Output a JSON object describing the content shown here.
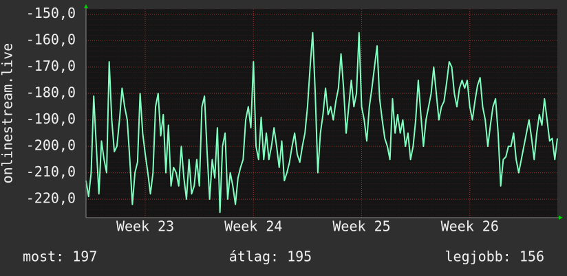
{
  "chart_data": {
    "type": "line",
    "ylabel": "onlinestream.live",
    "color": "#80ffc0",
    "grid": true,
    "ylim": [
      -227,
      -148
    ],
    "yticks": [
      {
        "value": -150,
        "label": "-150,0"
      },
      {
        "value": -160,
        "label": "-160,0"
      },
      {
        "value": -170,
        "label": "-170,0"
      },
      {
        "value": -180,
        "label": "-180,0"
      },
      {
        "value": -190,
        "label": "-190,0"
      },
      {
        "value": -200,
        "label": "-200,0"
      },
      {
        "value": -210,
        "label": "-210,0"
      },
      {
        "value": -220,
        "label": "-220,0"
      }
    ],
    "categories": [
      null,
      null,
      null,
      null,
      null,
      null,
      null,
      null,
      null,
      null,
      null,
      null,
      null,
      null,
      null,
      null,
      null,
      null,
      null,
      null,
      null,
      null,
      null,
      "Week 23",
      null,
      null,
      null,
      null,
      null,
      null,
      null,
      null,
      null,
      null,
      null,
      null,
      null,
      null,
      null,
      null,
      null,
      null,
      null,
      null,
      null,
      null,
      null,
      null,
      null,
      null,
      null,
      null,
      null,
      null,
      null,
      null,
      null,
      null,
      null,
      null,
      null,
      null,
      null,
      null,
      null,
      "Week 24",
      null,
      null,
      null,
      null,
      null,
      null,
      null,
      null,
      null,
      null,
      null,
      null,
      null,
      null,
      null,
      null,
      null,
      null,
      null,
      null,
      null,
      null,
      null,
      null,
      null,
      null,
      null,
      null,
      null,
      null,
      null,
      null,
      null,
      null,
      null,
      null,
      null,
      null,
      null,
      null,
      null,
      "Week 25",
      null,
      null,
      null,
      null,
      null,
      null,
      null,
      null,
      null,
      null,
      null,
      null,
      null,
      null,
      null,
      null,
      null,
      null,
      null,
      null,
      null,
      null,
      null,
      null,
      null,
      null,
      null,
      null,
      null,
      null,
      null,
      null,
      null,
      null,
      null,
      null,
      null,
      null,
      null,
      null,
      null,
      "Week 26",
      null,
      null,
      null,
      null,
      null,
      null,
      null,
      null,
      null,
      null,
      null,
      null,
      null,
      null,
      null,
      null,
      null,
      null,
      null,
      null,
      null,
      null,
      null,
      null,
      null,
      null,
      null,
      null,
      null,
      null,
      null,
      null,
      null,
      null
    ],
    "values": [
      -213,
      -219,
      -210,
      -181,
      -200,
      -218,
      -198,
      -205,
      -210,
      -168,
      -190,
      -202,
      -200,
      -190,
      -178,
      -185,
      -190,
      -205,
      -222,
      -210,
      -206,
      -180,
      -195,
      -203,
      -210,
      -218,
      -210,
      -185,
      -180,
      -196,
      -188,
      -210,
      -192,
      -215,
      -208,
      -210,
      -215,
      -200,
      -212,
      -220,
      -205,
      -218,
      -215,
      -205,
      -215,
      -185,
      -181,
      -202,
      -220,
      -205,
      -212,
      -193,
      -225,
      -200,
      -195,
      -220,
      -210,
      -215,
      -222,
      -212,
      -208,
      -205,
      -190,
      -185,
      -193,
      -168,
      -200,
      -205,
      -189,
      -205,
      -195,
      -205,
      -200,
      -193,
      -200,
      -208,
      -198,
      -213,
      -210,
      -206,
      -200,
      -195,
      -203,
      -206,
      -200,
      -195,
      -185,
      -170,
      -157,
      -180,
      -210,
      -195,
      -188,
      -178,
      -188,
      -185,
      -190,
      -183,
      -178,
      -165,
      -178,
      -195,
      -185,
      -175,
      -185,
      -180,
      -157,
      -185,
      -190,
      -198,
      -185,
      -178,
      -170,
      -162,
      -182,
      -190,
      -197,
      -200,
      -205,
      -182,
      -195,
      -188,
      -195,
      -190,
      -200,
      -195,
      -205,
      -200,
      -190,
      -175,
      -188,
      -200,
      -190,
      -185,
      -180,
      -170,
      -180,
      -190,
      -185,
      -183,
      -176,
      -168,
      -170,
      -180,
      -185,
      -178,
      -175,
      -178,
      -175,
      -185,
      -190,
      -183,
      -177,
      -174,
      -185,
      -190,
      -200,
      -192,
      -185,
      -182,
      -195,
      -215,
      -205,
      -204,
      -200,
      -200,
      -195,
      -205,
      -210,
      -205,
      -200,
      -195,
      -190,
      -197,
      -205,
      -195,
      -188,
      -192,
      -182,
      -190,
      -198,
      -197,
      -205,
      -197
    ],
    "stats": [
      "most: 197",
      "átlag: 195",
      "legjobb: 156"
    ]
  }
}
